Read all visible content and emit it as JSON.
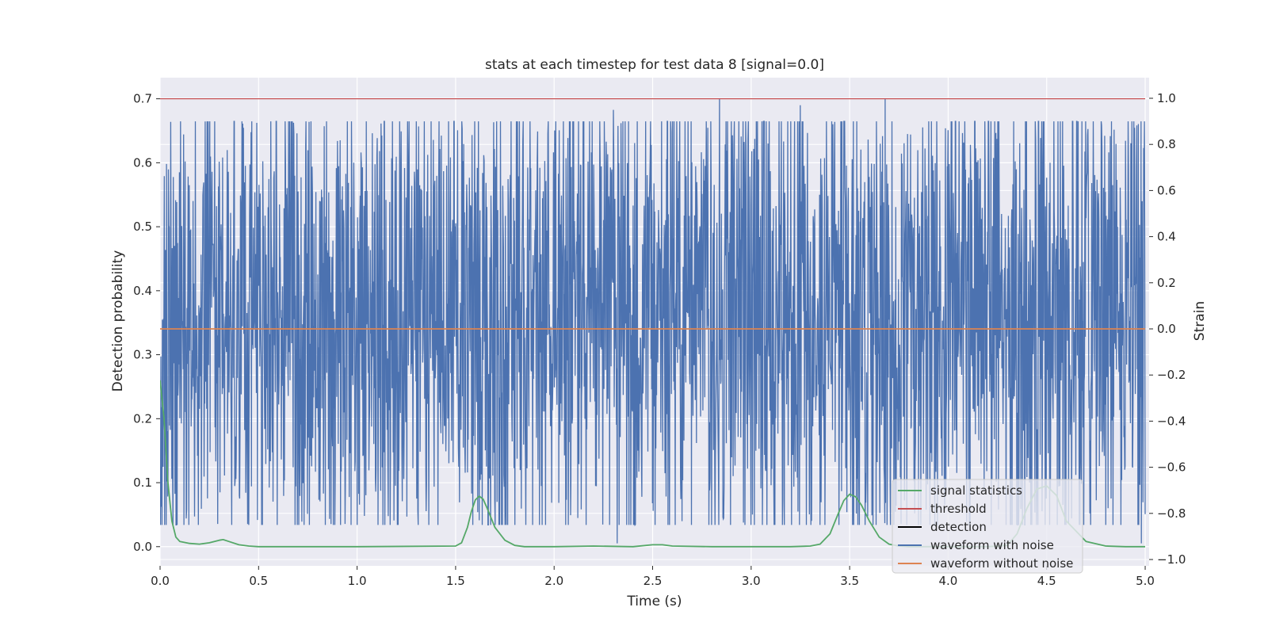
{
  "chart_data": {
    "type": "line",
    "title": "stats at each timestep for test data 8 [signal=0.0]",
    "xlabel": "Time (s)",
    "ylabel": "Detection probability",
    "y2label": "Strain",
    "xlim": [
      0.0,
      5.02
    ],
    "ylim": [
      -0.03,
      0.733
    ],
    "y2lim": [
      -1.0,
      1.0
    ],
    "grid": true,
    "legend_position": "lower-right",
    "x_ticks": [
      "0.0",
      "0.5",
      "1.0",
      "1.5",
      "2.0",
      "2.5",
      "3.0",
      "3.5",
      "4.0",
      "4.5",
      "5.0"
    ],
    "y_ticks": [
      "0.0",
      "0.1",
      "0.2",
      "0.3",
      "0.4",
      "0.5",
      "0.6",
      "0.7"
    ],
    "y2_ticks": [
      "−1.0",
      "−0.8",
      "−0.6",
      "−0.4",
      "−0.2",
      "0.0",
      "0.2",
      "0.4",
      "0.6",
      "0.8",
      "1.0"
    ],
    "colors": {
      "signal statistics": "#55a868",
      "threshold": "#c44e52",
      "detection": "#000000",
      "waveform with noise": "#4c72b0",
      "waveform without noise": "#dd8452",
      "plot_bg": "#eaeaf2",
      "grid": "#ffffff"
    },
    "legend": [
      "signal statistics",
      "threshold",
      "detection",
      "waveform with noise",
      "waveform without noise"
    ],
    "series": [
      {
        "name": "signal statistics",
        "axis": "left",
        "x": [
          0.0,
          0.02,
          0.04,
          0.06,
          0.08,
          0.1,
          0.15,
          0.2,
          0.25,
          0.3,
          0.32,
          0.35,
          0.4,
          0.45,
          0.5,
          1.0,
          1.5,
          1.53,
          1.56,
          1.58,
          1.6,
          1.62,
          1.64,
          1.66,
          1.7,
          1.75,
          1.8,
          1.85,
          1.9,
          2.0,
          2.2,
          2.4,
          2.5,
          2.55,
          2.6,
          2.8,
          3.0,
          3.2,
          3.3,
          3.35,
          3.4,
          3.44,
          3.47,
          3.5,
          3.53,
          3.56,
          3.6,
          3.65,
          3.7,
          3.75,
          3.8,
          3.9,
          4.0,
          4.1,
          4.2,
          4.3,
          4.35,
          4.4,
          4.45,
          4.5,
          4.55,
          4.6,
          4.7,
          4.8,
          4.9,
          5.0
        ],
        "values": [
          0.26,
          0.2,
          0.1,
          0.04,
          0.015,
          0.008,
          0.005,
          0.004,
          0.006,
          0.01,
          0.011,
          0.008,
          0.003,
          0.001,
          0.0,
          0.0,
          0.001,
          0.006,
          0.03,
          0.055,
          0.073,
          0.079,
          0.074,
          0.06,
          0.03,
          0.01,
          0.002,
          0.0,
          0.0,
          0.0,
          0.001,
          0.0,
          0.003,
          0.003,
          0.001,
          0.0,
          0.0,
          0.0,
          0.001,
          0.004,
          0.02,
          0.05,
          0.072,
          0.082,
          0.078,
          0.065,
          0.04,
          0.015,
          0.004,
          0.001,
          0.0,
          0.0,
          0.0,
          0.0,
          0.0,
          0.002,
          0.02,
          0.06,
          0.09,
          0.095,
          0.08,
          0.04,
          0.008,
          0.001,
          0.0,
          0.0
        ]
      },
      {
        "name": "threshold",
        "axis": "left",
        "x": [
          0.0,
          5.0
        ],
        "values": [
          0.7,
          0.7
        ]
      },
      {
        "name": "detection",
        "axis": "left",
        "x": [],
        "values": []
      },
      {
        "name": "waveform with noise",
        "axis": "right",
        "description_range": [
          -0.95,
          1.0
        ],
        "x": [
          0.0,
          0.21,
          0.42,
          0.68,
          1.42,
          1.62,
          1.71,
          2.12,
          2.3,
          2.32,
          2.79,
          2.84,
          2.86,
          3.04,
          3.25,
          3.68,
          3.83,
          4.52,
          4.72,
          4.98
        ],
        "values": [
          -0.6,
          -0.78,
          0.89,
          0.85,
          0.78,
          -0.83,
          -0.75,
          -0.82,
          0.95,
          -0.93,
          -0.7,
          1.0,
          -0.82,
          -0.52,
          0.97,
          1.0,
          -0.8,
          -0.7,
          -0.8,
          -0.93
        ]
      },
      {
        "name": "waveform without noise",
        "axis": "right",
        "x": [
          0.0,
          5.0
        ],
        "values": [
          0.0,
          0.0
        ]
      }
    ]
  }
}
